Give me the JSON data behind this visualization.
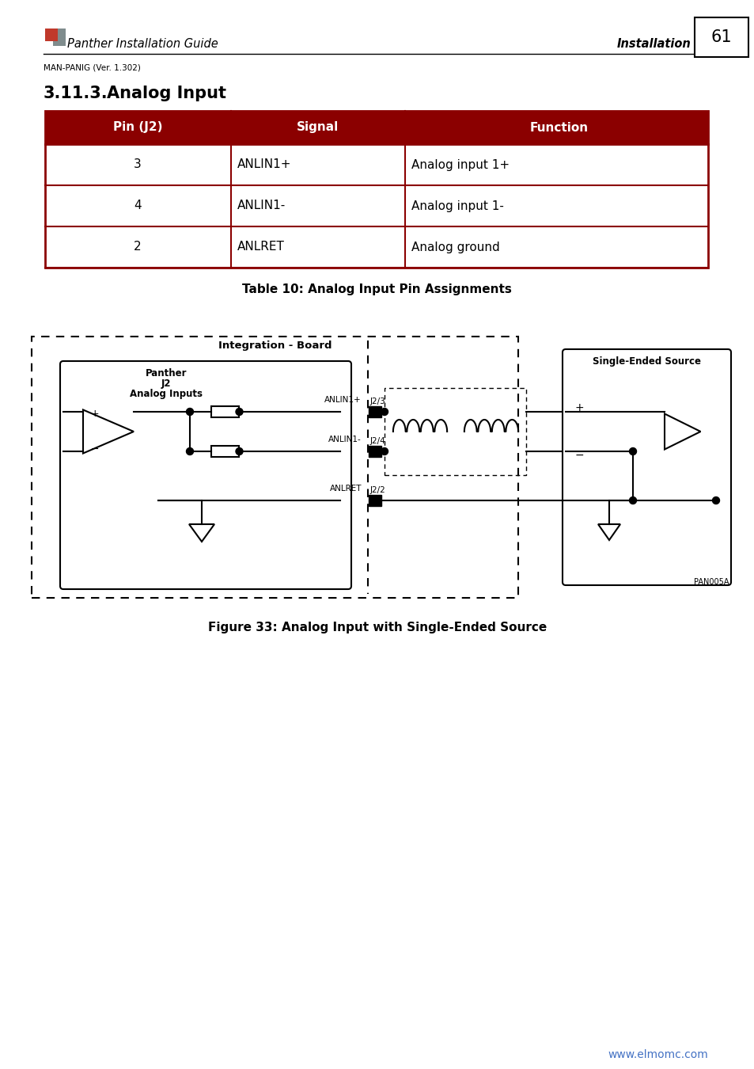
{
  "page_title": "Panther Installation Guide",
  "page_section": "Installation",
  "page_number": "61",
  "page_subtitle": "MAN-PANIG (Ver. 1.302)",
  "section_heading": "3.11.3.",
  "section_heading2": "Analog Input",
  "table_header": [
    "Pin (J2)",
    "Signal",
    "Function"
  ],
  "table_rows": [
    [
      "3",
      "ANLIN1+",
      "Analog input 1+"
    ],
    [
      "4",
      "ANLIN1-",
      "Analog input 1-"
    ],
    [
      "2",
      "ANLRET",
      "Analog ground"
    ]
  ],
  "table_caption": "Table 10: Analog Input Pin Assignments",
  "figure_caption": "Figure 33: Analog Input with Single-Ended Source",
  "header_bg": "#8B0000",
  "header_fg": "#FFFFFF",
  "border_color": "#8B0000",
  "website": "www.elmomc.com",
  "website_color": "#4472C4"
}
